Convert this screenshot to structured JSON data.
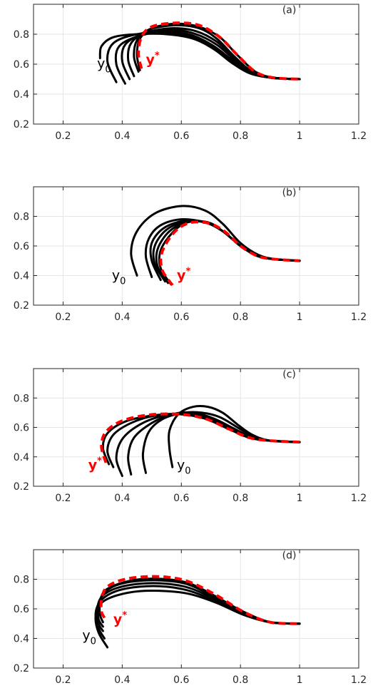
{
  "chart_data": [
    {
      "type": "line",
      "panel_label": "(a)",
      "xlim": [
        0.1,
        1.2
      ],
      "ylim": [
        0.2,
        1.0
      ],
      "xticks": [
        "0.2",
        "0.4",
        "0.6",
        "0.8",
        "1",
        "1.2"
      ],
      "yticks": [
        "0.2",
        "0.4",
        "0.6",
        "0.8"
      ],
      "grid": true,
      "colors": {
        "trajectory": "#000000",
        "target": "#ff0000"
      },
      "annotations": [
        {
          "base": "y",
          "sup": "",
          "sub": "0",
          "color": "#000000",
          "x": 0.315,
          "y": 0.575
        },
        {
          "base": "y",
          "sup": "*",
          "sub": "",
          "color": "#ff0000",
          "x": 0.48,
          "y": 0.6
        }
      ],
      "series": [
        {
          "role": "trajectory",
          "x": [
            0.325,
            0.33,
            0.37,
            0.45,
            0.55,
            0.64,
            0.71,
            0.77,
            0.83,
            0.9,
            1.0
          ],
          "y": [
            0.64,
            0.72,
            0.78,
            0.8,
            0.8,
            0.77,
            0.7,
            0.61,
            0.54,
            0.51,
            0.5
          ]
        },
        {
          "role": "trajectory",
          "x": [
            0.38,
            0.35,
            0.37,
            0.45,
            0.55,
            0.64,
            0.71,
            0.77,
            0.83,
            0.9,
            1.0
          ],
          "y": [
            0.48,
            0.62,
            0.74,
            0.8,
            0.81,
            0.78,
            0.71,
            0.62,
            0.55,
            0.51,
            0.5
          ]
        },
        {
          "role": "trajectory",
          "x": [
            0.41,
            0.38,
            0.39,
            0.46,
            0.56,
            0.64,
            0.71,
            0.77,
            0.83,
            0.9,
            1.0
          ],
          "y": [
            0.47,
            0.6,
            0.72,
            0.79,
            0.82,
            0.79,
            0.72,
            0.63,
            0.55,
            0.51,
            0.5
          ]
        },
        {
          "role": "trajectory",
          "x": [
            0.425,
            0.4,
            0.41,
            0.47,
            0.57,
            0.65,
            0.72,
            0.78,
            0.84,
            0.9,
            1.0
          ],
          "y": [
            0.5,
            0.62,
            0.73,
            0.8,
            0.83,
            0.8,
            0.73,
            0.63,
            0.55,
            0.51,
            0.5
          ]
        },
        {
          "role": "trajectory",
          "x": [
            0.44,
            0.42,
            0.43,
            0.48,
            0.57,
            0.65,
            0.72,
            0.78,
            0.84,
            0.91,
            1.0
          ],
          "y": [
            0.52,
            0.63,
            0.74,
            0.81,
            0.84,
            0.82,
            0.75,
            0.64,
            0.55,
            0.51,
            0.5
          ]
        },
        {
          "role": "trajectory",
          "x": [
            0.455,
            0.44,
            0.45,
            0.49,
            0.58,
            0.66,
            0.72,
            0.78,
            0.84,
            0.91,
            1.0
          ],
          "y": [
            0.55,
            0.65,
            0.76,
            0.83,
            0.86,
            0.84,
            0.77,
            0.65,
            0.55,
            0.51,
            0.5
          ]
        },
        {
          "role": "trajectory",
          "x": [
            0.46,
            0.45,
            0.46,
            0.5,
            0.58,
            0.66,
            0.73,
            0.79,
            0.85,
            0.91,
            1.0
          ],
          "y": [
            0.56,
            0.66,
            0.77,
            0.84,
            0.87,
            0.85,
            0.78,
            0.66,
            0.55,
            0.51,
            0.5
          ]
        },
        {
          "role": "target",
          "x": [
            0.465,
            0.455,
            0.465,
            0.5,
            0.58,
            0.66,
            0.73,
            0.79,
            0.85,
            0.91,
            1.0
          ],
          "y": [
            0.57,
            0.67,
            0.78,
            0.85,
            0.875,
            0.86,
            0.78,
            0.66,
            0.55,
            0.51,
            0.5
          ]
        }
      ]
    },
    {
      "type": "line",
      "panel_label": "(b)",
      "xlim": [
        0.1,
        1.2
      ],
      "ylim": [
        0.2,
        1.0
      ],
      "xticks": [
        "0.2",
        "0.4",
        "0.6",
        "0.8",
        "1",
        "1.2"
      ],
      "yticks": [
        "0.2",
        "0.4",
        "0.6",
        "0.8"
      ],
      "grid": true,
      "colors": {
        "trajectory": "#000000",
        "target": "#ff0000"
      },
      "annotations": [
        {
          "base": "y",
          "sup": "",
          "sub": "0",
          "color": "#000000",
          "x": 0.365,
          "y": 0.37
        },
        {
          "base": "y",
          "sup": "*",
          "sub": "",
          "color": "#ff0000",
          "x": 0.585,
          "y": 0.37
        }
      ],
      "series": [
        {
          "role": "trajectory",
          "x": [
            0.45,
            0.43,
            0.45,
            0.51,
            0.6,
            0.68,
            0.74,
            0.8,
            0.86,
            0.92,
            1.0
          ],
          "y": [
            0.4,
            0.55,
            0.7,
            0.82,
            0.87,
            0.84,
            0.75,
            0.62,
            0.54,
            0.51,
            0.5
          ]
        },
        {
          "role": "trajectory",
          "x": [
            0.5,
            0.48,
            0.49,
            0.53,
            0.6,
            0.68,
            0.74,
            0.8,
            0.86,
            0.92,
            1.0
          ],
          "y": [
            0.39,
            0.53,
            0.65,
            0.74,
            0.78,
            0.76,
            0.7,
            0.6,
            0.53,
            0.51,
            0.5
          ]
        },
        {
          "role": "trajectory",
          "x": [
            0.53,
            0.5,
            0.5,
            0.54,
            0.61,
            0.68,
            0.74,
            0.8,
            0.86,
            0.92,
            1.0
          ],
          "y": [
            0.37,
            0.5,
            0.62,
            0.72,
            0.77,
            0.76,
            0.7,
            0.6,
            0.53,
            0.51,
            0.5
          ]
        },
        {
          "role": "trajectory",
          "x": [
            0.545,
            0.51,
            0.51,
            0.55,
            0.61,
            0.68,
            0.74,
            0.8,
            0.86,
            0.92,
            1.0
          ],
          "y": [
            0.36,
            0.48,
            0.6,
            0.71,
            0.76,
            0.76,
            0.7,
            0.6,
            0.53,
            0.51,
            0.5
          ]
        },
        {
          "role": "trajectory",
          "x": [
            0.555,
            0.52,
            0.52,
            0.56,
            0.62,
            0.68,
            0.74,
            0.8,
            0.86,
            0.92,
            1.0
          ],
          "y": [
            0.35,
            0.46,
            0.58,
            0.7,
            0.76,
            0.76,
            0.7,
            0.6,
            0.53,
            0.51,
            0.5
          ]
        },
        {
          "role": "trajectory",
          "x": [
            0.565,
            0.53,
            0.53,
            0.57,
            0.62,
            0.69,
            0.74,
            0.8,
            0.86,
            0.92,
            1.0
          ],
          "y": [
            0.34,
            0.45,
            0.57,
            0.69,
            0.76,
            0.76,
            0.7,
            0.6,
            0.53,
            0.51,
            0.5
          ]
        },
        {
          "role": "target",
          "x": [
            0.57,
            0.535,
            0.535,
            0.575,
            0.625,
            0.69,
            0.745,
            0.8,
            0.86,
            0.92,
            1.0
          ],
          "y": [
            0.335,
            0.44,
            0.56,
            0.69,
            0.755,
            0.755,
            0.7,
            0.6,
            0.53,
            0.51,
            0.5
          ]
        }
      ]
    },
    {
      "type": "line",
      "panel_label": "(c)",
      "xlim": [
        0.1,
        1.2
      ],
      "ylim": [
        0.2,
        1.0
      ],
      "xticks": [
        "0.2",
        "0.4",
        "0.6",
        "0.8",
        "1",
        "1.2"
      ],
      "yticks": [
        "0.2",
        "0.4",
        "0.6",
        "0.8"
      ],
      "grid": true,
      "colors": {
        "trajectory": "#000000",
        "target": "#ff0000"
      },
      "annotations": [
        {
          "base": "y",
          "sup": "",
          "sub": "0",
          "color": "#000000",
          "x": 0.585,
          "y": 0.315
        },
        {
          "base": "y",
          "sup": "*",
          "sub": "",
          "color": "#ff0000",
          "x": 0.285,
          "y": 0.315
        }
      ],
      "series": [
        {
          "role": "trajectory",
          "x": [
            0.57,
            0.56,
            0.56,
            0.59,
            0.64,
            0.69,
            0.74,
            0.79,
            0.84,
            0.9,
            1.0
          ],
          "y": [
            0.33,
            0.45,
            0.58,
            0.69,
            0.74,
            0.74,
            0.7,
            0.62,
            0.55,
            0.51,
            0.5
          ]
        },
        {
          "role": "trajectory",
          "x": [
            0.48,
            0.47,
            0.49,
            0.54,
            0.61,
            0.67,
            0.73,
            0.79,
            0.84,
            0.9,
            1.0
          ],
          "y": [
            0.29,
            0.42,
            0.57,
            0.66,
            0.7,
            0.7,
            0.67,
            0.6,
            0.54,
            0.51,
            0.5
          ]
        },
        {
          "role": "trajectory",
          "x": [
            0.43,
            0.42,
            0.44,
            0.5,
            0.57,
            0.64,
            0.71,
            0.78,
            0.84,
            0.9,
            1.0
          ],
          "y": [
            0.28,
            0.4,
            0.53,
            0.63,
            0.69,
            0.7,
            0.66,
            0.59,
            0.53,
            0.51,
            0.5
          ]
        },
        {
          "role": "trajectory",
          "x": [
            0.4,
            0.38,
            0.4,
            0.46,
            0.54,
            0.62,
            0.7,
            0.77,
            0.84,
            0.9,
            1.0
          ],
          "y": [
            0.27,
            0.39,
            0.52,
            0.62,
            0.68,
            0.69,
            0.66,
            0.59,
            0.53,
            0.51,
            0.5
          ]
        },
        {
          "role": "trajectory",
          "x": [
            0.37,
            0.35,
            0.37,
            0.43,
            0.51,
            0.6,
            0.68,
            0.76,
            0.83,
            0.9,
            1.0
          ],
          "y": [
            0.33,
            0.44,
            0.55,
            0.63,
            0.68,
            0.69,
            0.66,
            0.59,
            0.53,
            0.51,
            0.5
          ]
        },
        {
          "role": "trajectory",
          "x": [
            0.355,
            0.335,
            0.35,
            0.41,
            0.5,
            0.59,
            0.68,
            0.76,
            0.83,
            0.9,
            1.0
          ],
          "y": [
            0.35,
            0.46,
            0.56,
            0.64,
            0.68,
            0.69,
            0.66,
            0.59,
            0.53,
            0.51,
            0.5
          ]
        },
        {
          "role": "target",
          "x": [
            0.345,
            0.33,
            0.345,
            0.4,
            0.49,
            0.59,
            0.68,
            0.76,
            0.83,
            0.9,
            1.0
          ],
          "y": [
            0.36,
            0.47,
            0.57,
            0.645,
            0.685,
            0.69,
            0.66,
            0.59,
            0.53,
            0.51,
            0.5
          ]
        }
      ]
    },
    {
      "type": "line",
      "panel_label": "(d)",
      "xlim": [
        0.1,
        1.2
      ],
      "ylim": [
        0.2,
        1.0
      ],
      "xticks": [
        "0.2",
        "0.4",
        "0.6",
        "0.8",
        "1",
        "1.2"
      ],
      "yticks": [
        "0.2",
        "0.4",
        "0.6",
        "0.8"
      ],
      "grid": true,
      "colors": {
        "trajectory": "#000000",
        "target": "#ff0000"
      },
      "annotations": [
        {
          "base": "y",
          "sup": "",
          "sub": "0",
          "color": "#000000",
          "x": 0.265,
          "y": 0.39
        },
        {
          "base": "y",
          "sup": "*",
          "sub": "",
          "color": "#ff0000",
          "x": 0.37,
          "y": 0.5
        }
      ],
      "series": [
        {
          "role": "trajectory",
          "x": [
            0.35,
            0.32,
            0.31,
            0.33,
            0.38,
            0.46,
            0.55,
            0.63,
            0.72,
            0.81,
            0.9,
            1.0
          ],
          "y": [
            0.34,
            0.44,
            0.55,
            0.64,
            0.69,
            0.72,
            0.72,
            0.7,
            0.64,
            0.56,
            0.51,
            0.5
          ]
        },
        {
          "role": "trajectory",
          "x": [
            0.34,
            0.32,
            0.31,
            0.33,
            0.38,
            0.46,
            0.55,
            0.63,
            0.72,
            0.81,
            0.9,
            1.0
          ],
          "y": [
            0.4,
            0.47,
            0.57,
            0.66,
            0.72,
            0.75,
            0.75,
            0.72,
            0.65,
            0.57,
            0.51,
            0.5
          ]
        },
        {
          "role": "trajectory",
          "x": [
            0.335,
            0.32,
            0.315,
            0.33,
            0.38,
            0.46,
            0.55,
            0.63,
            0.72,
            0.81,
            0.9,
            1.0
          ],
          "y": [
            0.45,
            0.5,
            0.59,
            0.68,
            0.74,
            0.77,
            0.77,
            0.74,
            0.66,
            0.57,
            0.51,
            0.5
          ]
        },
        {
          "role": "trajectory",
          "x": [
            0.335,
            0.32,
            0.32,
            0.335,
            0.38,
            0.46,
            0.55,
            0.63,
            0.72,
            0.81,
            0.9,
            1.0
          ],
          "y": [
            0.48,
            0.53,
            0.61,
            0.7,
            0.76,
            0.79,
            0.79,
            0.76,
            0.67,
            0.58,
            0.51,
            0.5
          ]
        },
        {
          "role": "trajectory",
          "x": [
            0.335,
            0.325,
            0.325,
            0.34,
            0.39,
            0.46,
            0.55,
            0.63,
            0.72,
            0.81,
            0.9,
            1.0
          ],
          "y": [
            0.51,
            0.56,
            0.64,
            0.72,
            0.77,
            0.8,
            0.8,
            0.77,
            0.68,
            0.58,
            0.51,
            0.5
          ]
        },
        {
          "role": "target",
          "x": [
            0.34,
            0.33,
            0.33,
            0.345,
            0.39,
            0.46,
            0.55,
            0.63,
            0.72,
            0.81,
            0.9,
            1.0
          ],
          "y": [
            0.54,
            0.58,
            0.66,
            0.74,
            0.79,
            0.815,
            0.815,
            0.78,
            0.69,
            0.58,
            0.51,
            0.5
          ]
        }
      ]
    }
  ]
}
